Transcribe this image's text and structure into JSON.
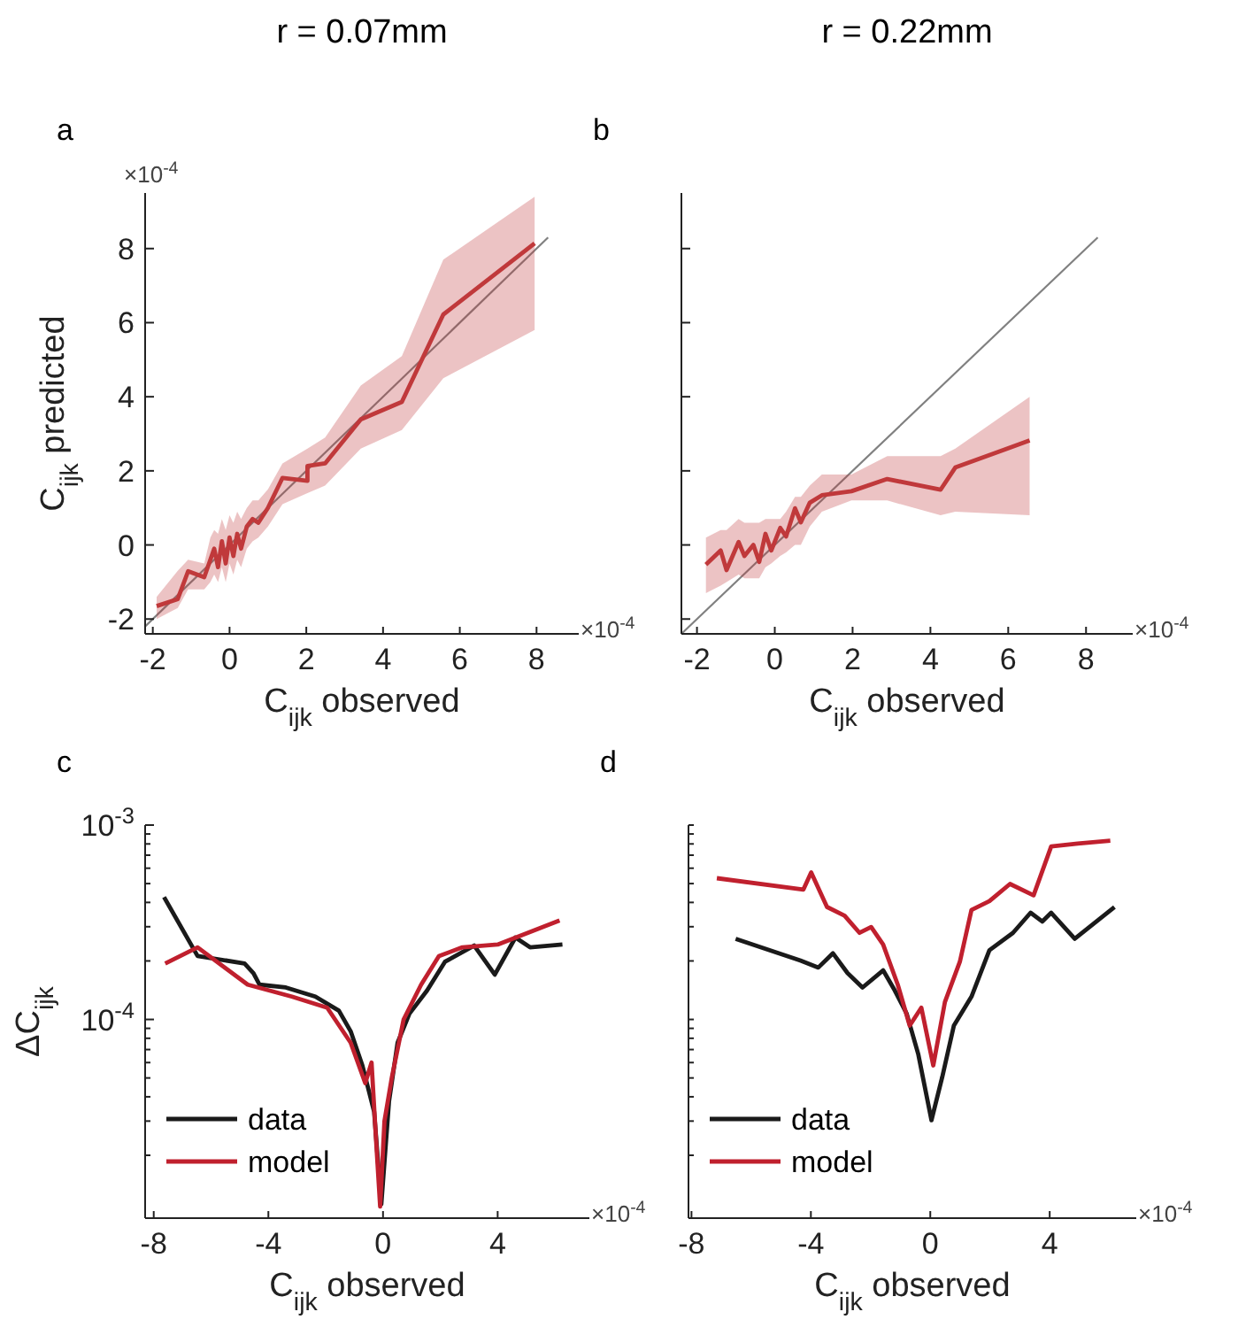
{
  "chart_data": [
    {
      "type": "line",
      "title": "r =  0.07mm",
      "xlabel": "C$_{ijk}$ observed",
      "ylabel": "C$_{ijk}$ predicted",
      "annotations": [
        "a",
        "×10$^{-4}$",
        "×10$^{-4}$"
      ],
      "xlim": [
        -2.2,
        9.1
      ],
      "ylim": [
        -2.4,
        9.5
      ],
      "xticks": [
        -2,
        0,
        2,
        4,
        6,
        8
      ],
      "yticks": [
        -2,
        0,
        2,
        4,
        6,
        8
      ],
      "series": [
        {
          "color": "#808080",
          "x": [
            -2.2,
            8.3
          ],
          "values": [
            -2.2,
            8.3
          ]
        },
        {
          "color": "#c0393b",
          "x": [
            -1.9,
            -1.35,
            -1.08,
            -0.66,
            -0.5,
            -0.4,
            -0.3,
            -0.2,
            -0.1,
            0,
            0.1,
            0.2,
            0.3,
            0.45,
            0.6,
            0.75,
            1.0,
            1.38,
            2.03,
            2.03,
            2.49,
            3.42,
            4.49,
            5.57,
            7.95
          ],
          "values": [
            -1.65,
            -1.46,
            -0.71,
            -0.87,
            -0.4,
            -0.1,
            -0.6,
            0.1,
            -0.5,
            0.2,
            -0.3,
            0.3,
            -0.1,
            0.5,
            0.7,
            0.6,
            1.0,
            1.81,
            1.73,
            2.13,
            2.2,
            3.39,
            3.86,
            6.22,
            8.14
          ],
          "lower": [
            -2.0,
            -1.7,
            -1.2,
            -1.2,
            -1.0,
            -0.8,
            -1.0,
            -0.6,
            -1.0,
            -0.5,
            -0.8,
            -0.4,
            -0.6,
            -0.1,
            0.1,
            0.2,
            0.5,
            1.1,
            1.4,
            1.4,
            1.6,
            2.6,
            3.1,
            4.5,
            5.8
          ],
          "upper": [
            -1.4,
            -0.7,
            -0.4,
            -0.5,
            0.2,
            0.4,
            0.3,
            0.7,
            0.4,
            0.8,
            0.6,
            0.9,
            0.7,
            1.0,
            1.2,
            1.2,
            1.5,
            2.2,
            2.6,
            2.6,
            2.9,
            4.3,
            5.1,
            7.7,
            9.4
          ]
        }
      ]
    },
    {
      "type": "line",
      "title": "r =  0.22mm",
      "xlabel": "C$_{ijk}$ observed",
      "annotations": [
        "b",
        "×10$^{-4}$"
      ],
      "xlim": [
        -2.4,
        9.2
      ],
      "ylim": [
        -2.4,
        9.5
      ],
      "xticks": [
        -2,
        0,
        2,
        4,
        6,
        8
      ],
      "yticks": [
        -2,
        0,
        2,
        4,
        6,
        8
      ],
      "tick_labels": "x",
      "series": [
        {
          "color": "#808080",
          "x": [
            -2.4,
            8.3
          ],
          "values": [
            -2.4,
            8.3
          ]
        },
        {
          "color": "#c0393b",
          "x": [
            -1.77,
            -1.39,
            -1.24,
            -0.93,
            -0.78,
            -0.55,
            -0.4,
            -0.24,
            -0.09,
            0.14,
            0.29,
            0.52,
            0.67,
            0.9,
            1.21,
            1.97,
            2.89,
            4.26,
            4.64,
            6.55
          ],
          "values": [
            -0.53,
            -0.15,
            -0.68,
            0.08,
            -0.3,
            0,
            -0.46,
            0.3,
            -0.15,
            0.46,
            0.23,
            0.99,
            0.61,
            1.14,
            1.34,
            1.45,
            1.78,
            1.49,
            2.09,
            2.82
          ],
          "lower": [
            -1.3,
            -1.1,
            -1.0,
            -0.8,
            -0.9,
            -0.9,
            -0.9,
            -0.6,
            -0.5,
            -0.3,
            -0.2,
            0.0,
            0.0,
            0.5,
            0.9,
            1.2,
            1.2,
            0.8,
            0.9,
            0.8
          ],
          "upper": [
            0.2,
            0.4,
            0.4,
            0.7,
            0.6,
            0.6,
            0.6,
            0.7,
            0.7,
            0.7,
            0.9,
            1.3,
            1.3,
            1.6,
            1.9,
            1.9,
            2.4,
            2.4,
            2.6,
            4.0
          ]
        }
      ]
    },
    {
      "type": "line",
      "xlabel": "C$_{ijk}$ observed",
      "ylabel": "ΔC$_{ijk}$",
      "annotations": [
        "c",
        "×10$^{-4}$"
      ],
      "log": "y",
      "legend": "bottom left",
      "xlim": [
        -8.3,
        7.2
      ],
      "ylim": [
        9.5e-06,
        0.001
      ],
      "xticks": [
        -8,
        -4,
        0,
        4
      ],
      "yticks": [
        {
          "value": 2e-05,
          "label": null
        },
        {
          "value": 3e-05,
          "label": null
        },
        {
          "value": 4e-05,
          "label": null
        },
        {
          "value": 5e-05,
          "label": null
        },
        {
          "value": 6e-05,
          "label": null
        },
        {
          "value": 7e-05,
          "label": null
        },
        {
          "value": 8e-05,
          "label": null
        },
        {
          "value": 9e-05,
          "label": null
        },
        {
          "value": 0.0001,
          "label": "10$^{-4}$"
        },
        {
          "value": 0.0002,
          "label": null
        },
        {
          "value": 0.0003,
          "label": null
        },
        {
          "value": 0.0004,
          "label": null
        },
        {
          "value": 0.0005,
          "label": null
        },
        {
          "value": 0.0006,
          "label": null
        },
        {
          "value": 0.0007,
          "label": null
        },
        {
          "value": 0.0008,
          "label": null
        },
        {
          "value": 0.0009,
          "label": null
        },
        {
          "value": 0.001,
          "label": "10$^{-3}$"
        }
      ],
      "series": [
        {
          "name": "data",
          "color": "#1a1a1a",
          "x": [
            -7.64,
            -6.47,
            -4.83,
            -4.52,
            -4.31,
            -3.39,
            -2.36,
            -1.54,
            -1.13,
            -0.72,
            -0.31,
            -0.06,
            0.21,
            0.51,
            0.92,
            1.54,
            2.16,
            3.18,
            3.9,
            4.62,
            5.13,
            6.26
          ],
          "values": [
            0.000426,
            0.000212,
            0.000194,
            0.000173,
            0.000151,
            0.000146,
            0.000131,
            0.000111,
            8.7e-05,
            5.8e-05,
            3.35e-05,
            1.12e-05,
            3.8e-05,
            7.6e-05,
            0.000107,
            0.000141,
            0.000198,
            0.00024,
            0.00017,
            0.000264,
            0.000235,
            0.000243
          ]
        },
        {
          "name": "model",
          "color": "#c0202e",
          "x": [
            -7.6,
            -6.47,
            -4.72,
            -3.18,
            -1.95,
            -1.13,
            -0.62,
            -0.4,
            -0.25,
            -0.1,
            0.05,
            0.31,
            0.72,
            1.33,
            1.95,
            2.77,
            4.0,
            6.16
          ],
          "values": [
            0.000194,
            0.000235,
            0.000151,
            0.000131,
            0.000115,
            7.6e-05,
            4.7e-05,
            6e-05,
            2.5e-05,
            1.09e-05,
            3e-05,
            5.05e-05,
            0.0001,
            0.000151,
            0.000212,
            0.000235,
            0.000243,
            0.000323
          ]
        }
      ]
    },
    {
      "type": "line",
      "xlabel": "C$_{ijk}$ observed",
      "annotations": [
        "d",
        "×10$^{-4}$"
      ],
      "log": "y",
      "legend": "bottom left",
      "tick_labels": "x",
      "xlim": [
        -8.1,
        6.9
      ],
      "ylim": [
        9.5e-06,
        0.001
      ],
      "xticks": [
        -8,
        -4,
        0,
        4
      ],
      "yticks": [
        {
          "value": 2e-05,
          "label": null
        },
        {
          "value": 3e-05,
          "label": null
        },
        {
          "value": 4e-05,
          "label": null
        },
        {
          "value": 5e-05,
          "label": null
        },
        {
          "value": 6e-05,
          "label": null
        },
        {
          "value": 7e-05,
          "label": null
        },
        {
          "value": 8e-05,
          "label": null
        },
        {
          "value": 9e-05,
          "label": null
        },
        {
          "value": 0.0001,
          "label": null
        },
        {
          "value": 0.0002,
          "label": null
        },
        {
          "value": 0.0003,
          "label": null
        },
        {
          "value": 0.0004,
          "label": null
        },
        {
          "value": 0.0005,
          "label": null
        },
        {
          "value": 0.0006,
          "label": null
        },
        {
          "value": 0.0007,
          "label": null
        },
        {
          "value": 0.0008,
          "label": null
        },
        {
          "value": 0.0009,
          "label": null
        },
        {
          "value": 0.001,
          "label": null
        }
      ],
      "series": [
        {
          "name": "data",
          "color": "#1a1a1a",
          "x": [
            -6.52,
            -4.35,
            -3.75,
            -3.26,
            -2.77,
            -2.27,
            -1.58,
            -1.19,
            -0.79,
            -0.4,
            0.04,
            0.4,
            0.79,
            1.38,
            1.98,
            2.77,
            3.36,
            3.75,
            4.05,
            4.84,
            6.17
          ],
          "values": [
            0.00026,
            0.000201,
            0.000185,
            0.000219,
            0.000173,
            0.000146,
            0.000179,
            0.000141,
            0.000107,
            6.6e-05,
            3.03e-05,
            5.05e-05,
            9.3e-05,
            0.000131,
            0.000227,
            0.000279,
            0.000354,
            0.000319,
            0.000354,
            0.00026,
            0.000379
          ]
        },
        {
          "name": "model",
          "color": "#c0202e",
          "x": [
            -7.15,
            -4.25,
            -3.99,
            -3.46,
            -2.87,
            -2.37,
            -1.98,
            -1.58,
            -1.09,
            -0.69,
            -0.3,
            0.1,
            0.49,
            0.99,
            1.38,
            1.98,
            2.67,
            3.46,
            4.05,
            4.94,
            6.03
          ],
          "values": [
            0.000533,
            0.000466,
            0.000571,
            0.000379,
            0.000342,
            0.000279,
            0.000299,
            0.000243,
            0.000151,
            9.3e-05,
            0.000115,
            5.8e-05,
            0.000123,
            0.000198,
            0.000366,
            0.000406,
            0.000498,
            0.000435,
            0.000776,
            0.000804,
            0.000832
          ]
        }
      ]
    }
  ]
}
